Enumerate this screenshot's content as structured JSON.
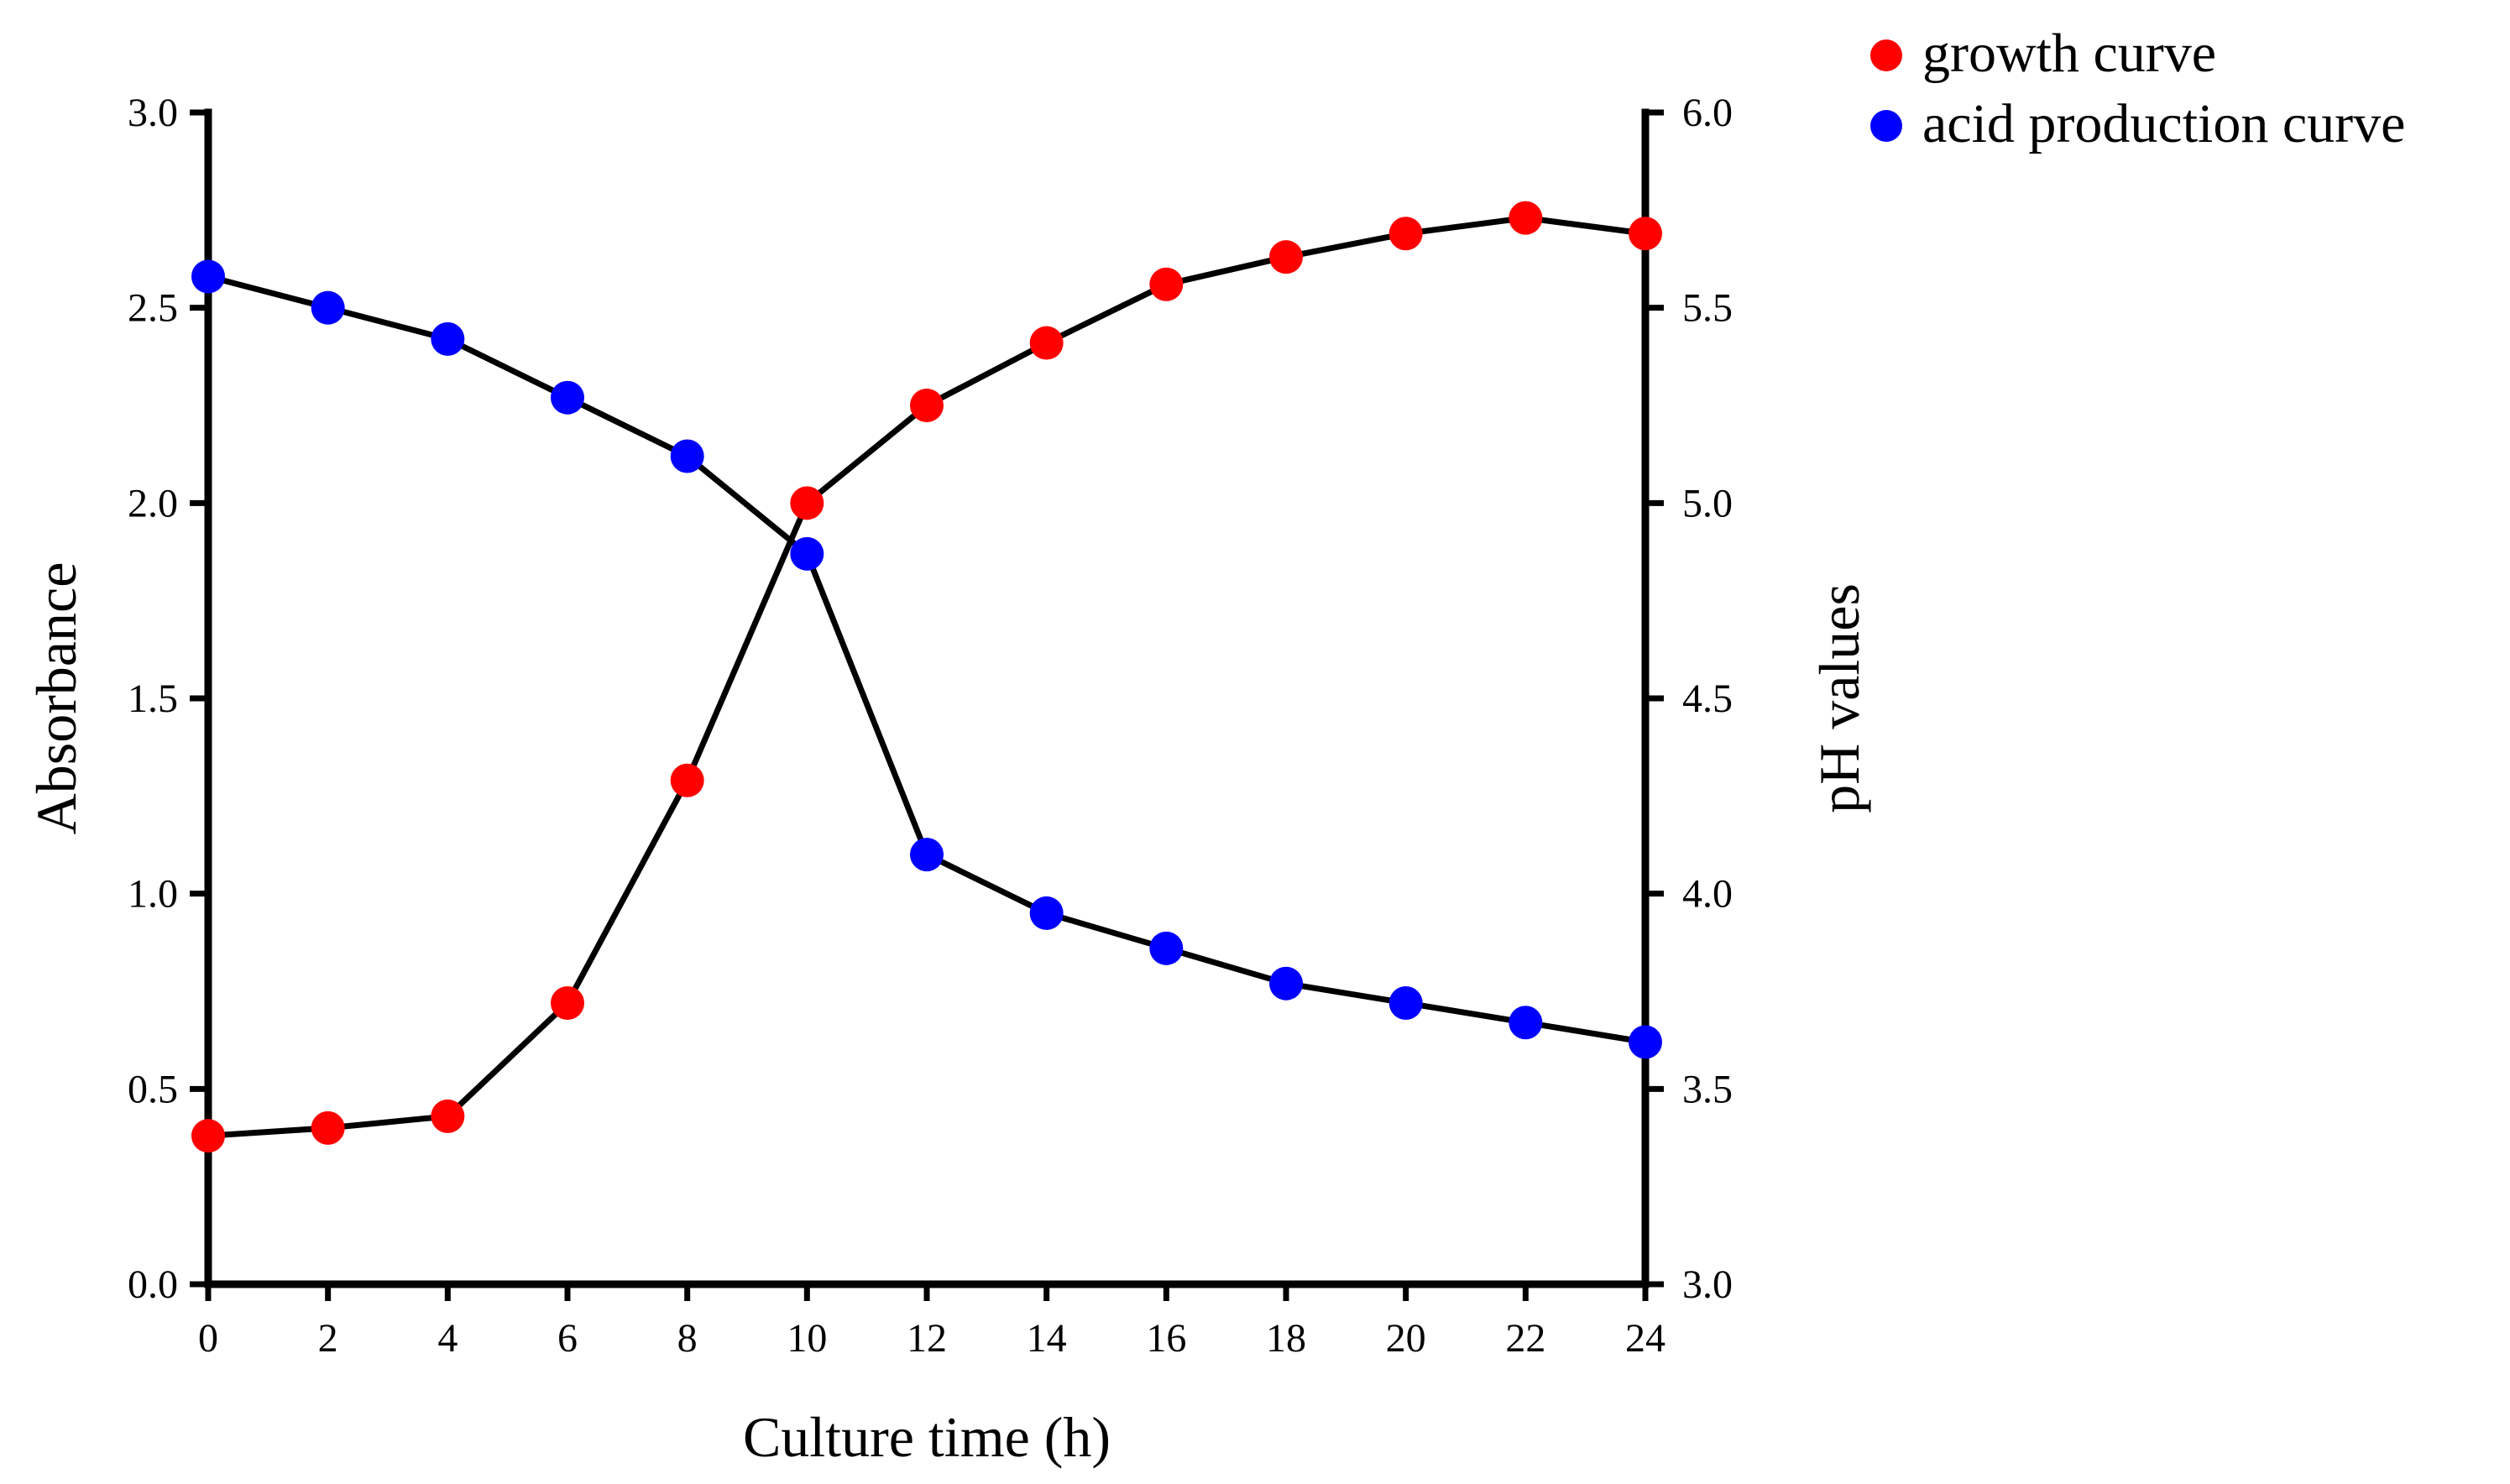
{
  "chart_data": {
    "type": "line",
    "title": "",
    "xlabel": "Culture time (h)",
    "ylabel": "Absorbance",
    "y2label": "pH values",
    "x": [
      0,
      2,
      4,
      6,
      8,
      10,
      12,
      14,
      16,
      18,
      20,
      22,
      24
    ],
    "xticks": [
      "0",
      "2",
      "4",
      "6",
      "8",
      "10",
      "12",
      "14",
      "16",
      "18",
      "20",
      "22",
      "24"
    ],
    "xlim": [
      0,
      24
    ],
    "ylim": [
      0,
      3.0
    ],
    "y2lim": [
      3.0,
      6.0
    ],
    "yticks": [
      "0.0",
      "0.5",
      "1.0",
      "1.5",
      "2.0",
      "2.5",
      "3.0"
    ],
    "y2ticks": [
      "3.0",
      "3.5",
      "4.0",
      "4.5",
      "5.0",
      "5.5",
      "6.0"
    ],
    "grid": false,
    "legend_position": "top-right",
    "series": [
      {
        "name": "growth curve",
        "axis": "left",
        "color": "#ff0000",
        "values": [
          0.38,
          0.4,
          0.43,
          0.72,
          1.29,
          2.0,
          2.25,
          2.41,
          2.56,
          2.63,
          2.69,
          2.73,
          2.69
        ]
      },
      {
        "name": "acid production curve",
        "axis": "right",
        "color": "#0000ff",
        "values": [
          5.58,
          5.5,
          5.42,
          5.27,
          5.12,
          4.87,
          4.1,
          3.95,
          3.86,
          3.77,
          3.72,
          3.67,
          3.62
        ]
      }
    ]
  }
}
